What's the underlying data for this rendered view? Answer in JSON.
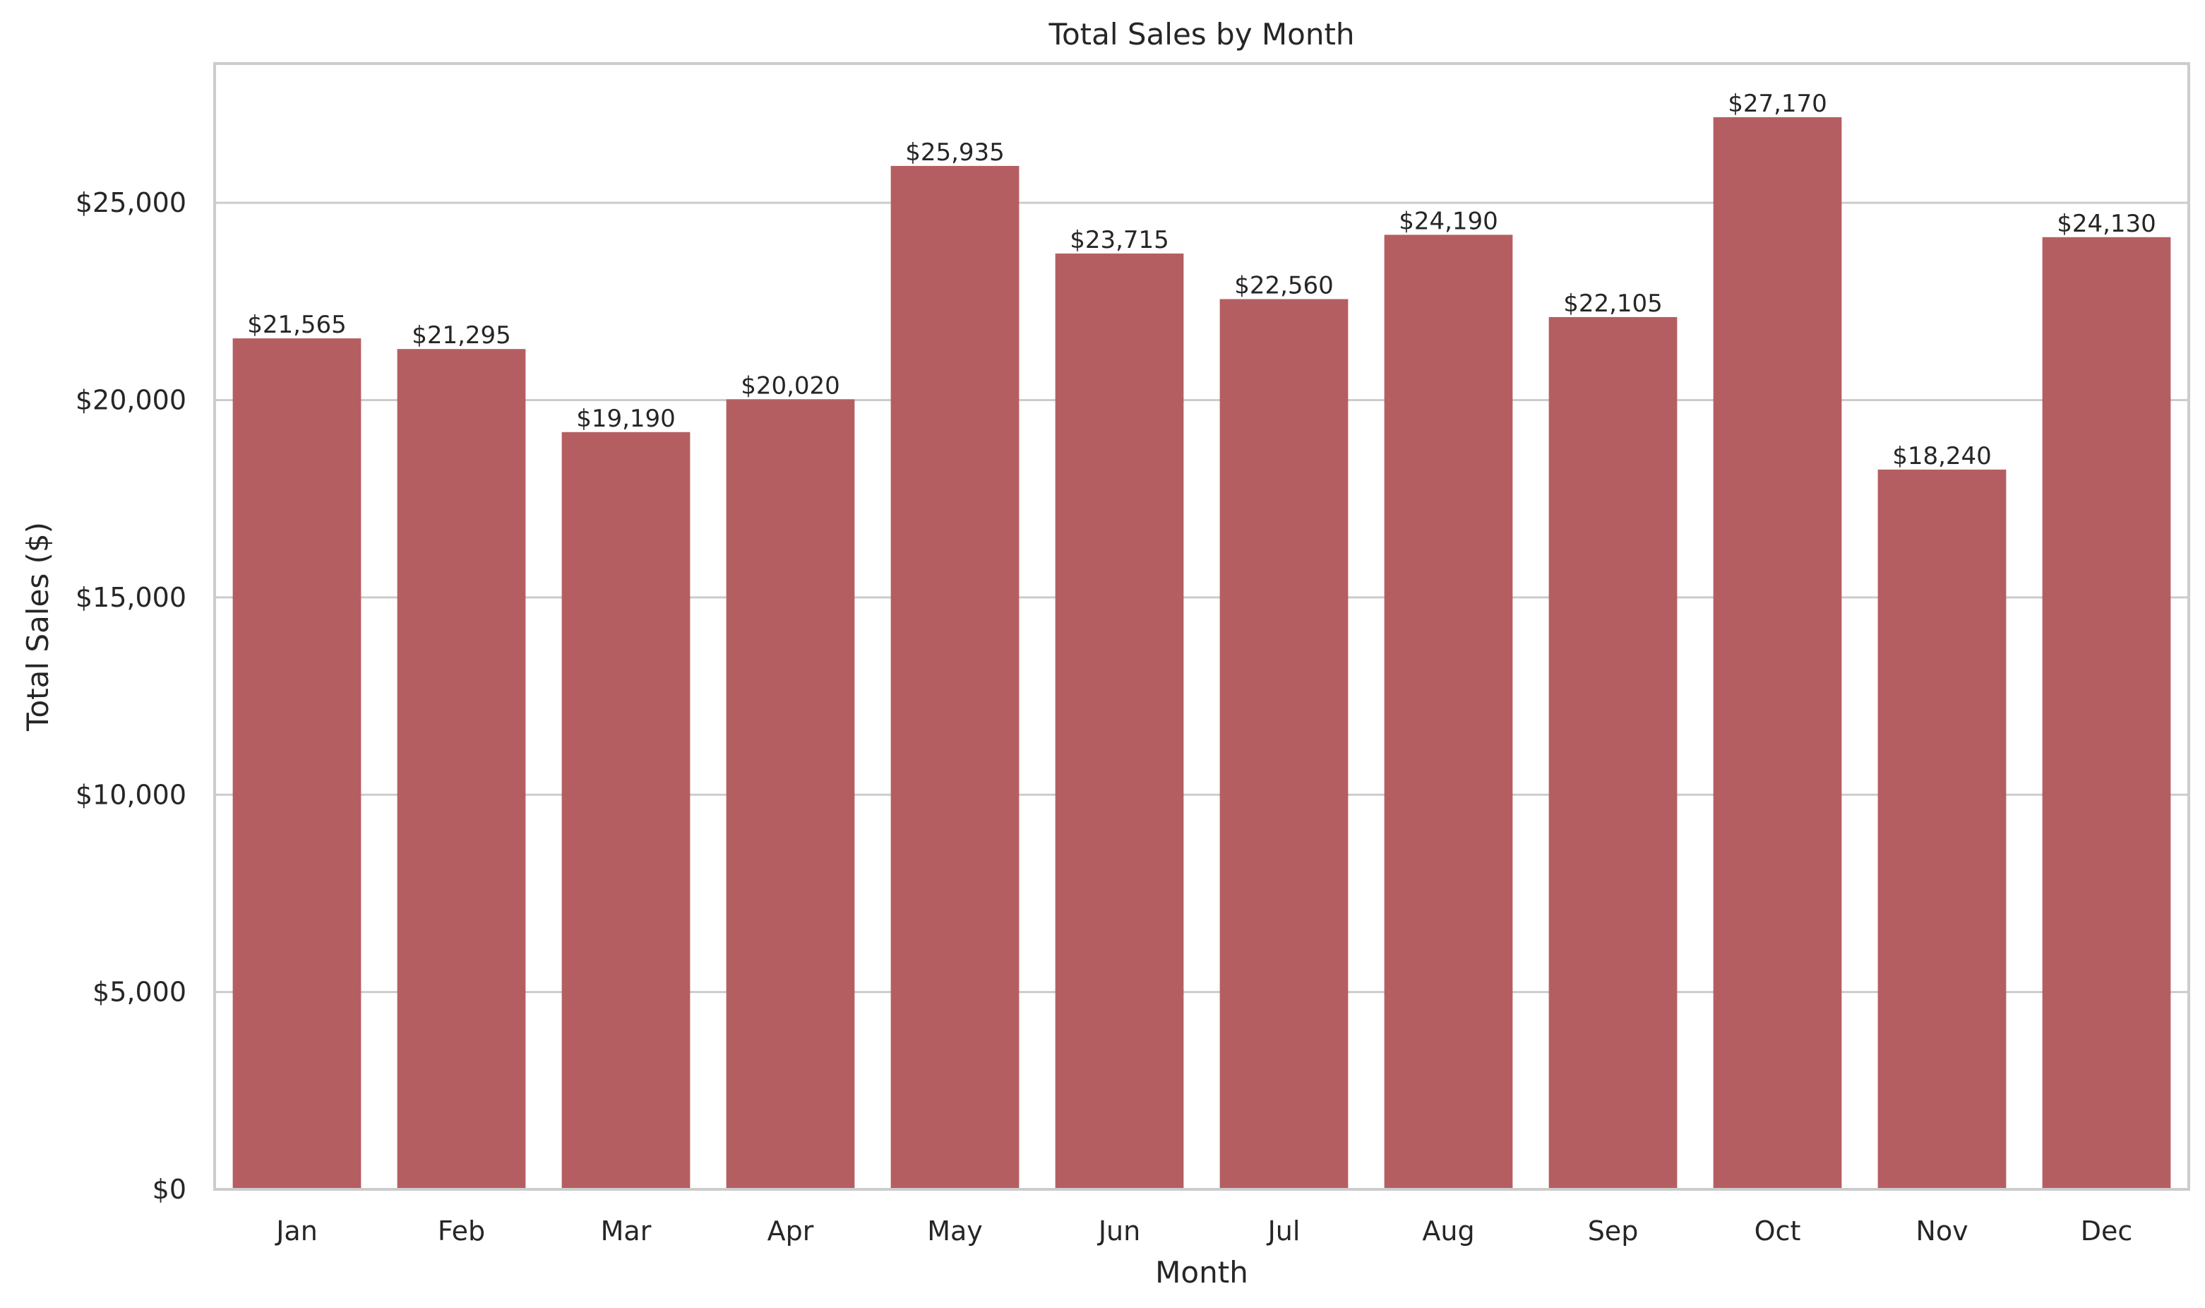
{
  "chart_data": {
    "type": "bar",
    "title": "Total Sales by Month",
    "xlabel": "Month",
    "ylabel": "Total Sales ($)",
    "categories": [
      "Jan",
      "Feb",
      "Mar",
      "Apr",
      "May",
      "Jun",
      "Jul",
      "Aug",
      "Sep",
      "Oct",
      "Nov",
      "Dec"
    ],
    "values": [
      21565,
      21295,
      19190,
      20020,
      25935,
      23715,
      22560,
      24190,
      22105,
      27170,
      18240,
      24130
    ],
    "value_labels": [
      "$21,565",
      "$21,295",
      "$19,190",
      "$20,020",
      "$25,935",
      "$23,715",
      "$22,560",
      "$24,190",
      "$22,105",
      "$27,170",
      "$18,240",
      "$24,130"
    ],
    "yticks": [
      0,
      5000,
      10000,
      15000,
      20000,
      25000
    ],
    "ytick_labels": [
      "$0",
      "$5,000",
      "$10,000",
      "$15,000",
      "$20,000",
      "$25,000"
    ],
    "ylim": [
      0,
      28529
    ],
    "grid": "horizontal",
    "bar_color": "#b55e62",
    "grid_color": "#cccccc"
  }
}
